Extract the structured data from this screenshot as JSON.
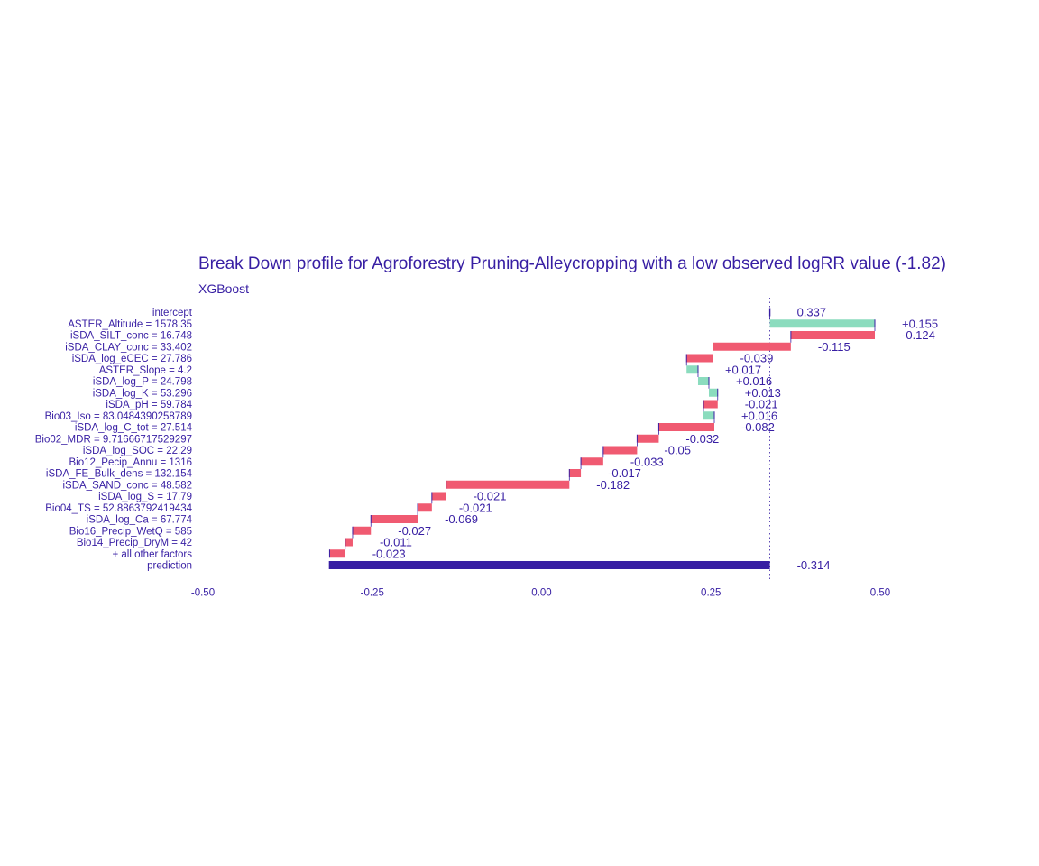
{
  "chart_data": {
    "type": "bar",
    "subtype": "break-down waterfall",
    "title": "Break Down profile for Agroforestry Pruning-Alleycropping with a low observed logRR value (-1.82)",
    "subtitle": "XGBoost",
    "xlim": [
      -0.5,
      0.5
    ],
    "xticks": [
      "-0.50",
      "-0.25",
      "0.00",
      "0.25",
      "0.50"
    ],
    "xtick_values": [
      -0.5,
      -0.25,
      0.0,
      0.25,
      0.5
    ],
    "grid": false,
    "reference_line": 0.337,
    "colors": {
      "positive": "#8bdcbe",
      "negative": "#f05a71",
      "prediction": "#371ea3",
      "text": "#371ea3",
      "connector": "#371ea3"
    },
    "rows": [
      {
        "label": "intercept",
        "start": 0.337,
        "end": 0.337,
        "value_label": "0.337",
        "kind": "intercept"
      },
      {
        "label": "ASTER_Altitude = 1578.35",
        "start": 0.337,
        "end": 0.492,
        "value_label": "+0.155",
        "kind": "positive"
      },
      {
        "label": "iSDA_SILT_conc = 16.748",
        "start": 0.492,
        "end": 0.368,
        "value_label": "-0.124",
        "kind": "negative"
      },
      {
        "label": "iSDA_CLAY_conc = 33.402",
        "start": 0.368,
        "end": 0.253,
        "value_label": "-0.115",
        "kind": "negative"
      },
      {
        "label": "iSDA_log_eCEC = 27.786",
        "start": 0.253,
        "end": 0.214,
        "value_label": "-0.039",
        "kind": "negative"
      },
      {
        "label": "ASTER_Slope = 4.2",
        "start": 0.214,
        "end": 0.231,
        "value_label": "+0.017",
        "kind": "positive"
      },
      {
        "label": "iSDA_log_P = 24.798",
        "start": 0.231,
        "end": 0.247,
        "value_label": "+0.016",
        "kind": "positive"
      },
      {
        "label": "iSDA_log_K = 53.296",
        "start": 0.247,
        "end": 0.26,
        "value_label": "+0.013",
        "kind": "positive"
      },
      {
        "label": "iSDA_pH = 59.784",
        "start": 0.26,
        "end": 0.239,
        "value_label": "-0.021",
        "kind": "negative"
      },
      {
        "label": "Bio03_Iso = 83.0484390258789",
        "start": 0.239,
        "end": 0.255,
        "value_label": "+0.016",
        "kind": "positive"
      },
      {
        "label": "iSDA_log_C_tot = 27.514",
        "start": 0.255,
        "end": 0.173,
        "value_label": "-0.082",
        "kind": "negative"
      },
      {
        "label": "Bio02_MDR = 9.71666717529297",
        "start": 0.173,
        "end": 0.141,
        "value_label": "-0.032",
        "kind": "negative"
      },
      {
        "label": "iSDA_log_SOC = 22.29",
        "start": 0.141,
        "end": 0.091,
        "value_label": "-0.05",
        "kind": "negative"
      },
      {
        "label": "Bio12_Pecip_Annu = 1316",
        "start": 0.091,
        "end": 0.058,
        "value_label": "-0.033",
        "kind": "negative"
      },
      {
        "label": "iSDA_FE_Bulk_dens = 132.154",
        "start": 0.058,
        "end": 0.041,
        "value_label": "-0.017",
        "kind": "negative"
      },
      {
        "label": "iSDA_SAND_conc = 48.582",
        "start": 0.041,
        "end": -0.141,
        "value_label": "-0.182",
        "kind": "negative"
      },
      {
        "label": "iSDA_log_S = 17.79",
        "start": -0.141,
        "end": -0.162,
        "value_label": "-0.021",
        "kind": "negative"
      },
      {
        "label": "Bio04_TS = 52.8863792419434",
        "start": -0.162,
        "end": -0.183,
        "value_label": "-0.021",
        "kind": "negative"
      },
      {
        "label": "iSDA_log_Ca = 67.774",
        "start": -0.183,
        "end": -0.252,
        "value_label": "-0.069",
        "kind": "negative"
      },
      {
        "label": "Bio16_Precip_WetQ = 585",
        "start": -0.252,
        "end": -0.279,
        "value_label": "-0.027",
        "kind": "negative"
      },
      {
        "label": "Bio14_Precip_DryM = 42",
        "start": -0.279,
        "end": -0.29,
        "value_label": "-0.011",
        "kind": "negative"
      },
      {
        "label": "+ all other factors",
        "start": -0.29,
        "end": -0.313,
        "value_label": "-0.023",
        "kind": "negative"
      },
      {
        "label": "prediction",
        "start": 0.337,
        "end": -0.314,
        "value_label": "-0.314",
        "kind": "prediction"
      }
    ]
  }
}
